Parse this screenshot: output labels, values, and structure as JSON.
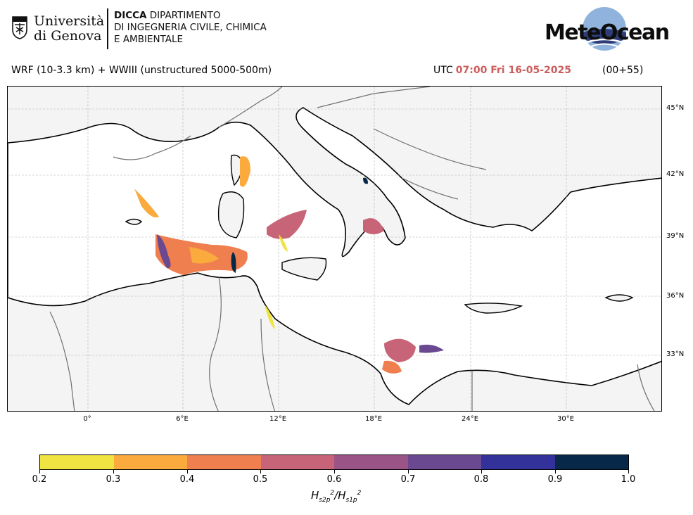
{
  "header": {
    "university_line1": "Università",
    "university_line2": "di Genova",
    "dept_bold": "DICCA",
    "dept_line1": " DIPARTIMENTO",
    "dept_line2": "DI INGEGNERIA CIVILE, CHIMICA",
    "dept_line3": "E AMBIENTALE",
    "brand": "MeteOcean"
  },
  "run": {
    "model": "WRF (10-3.3 km) + WWIII (unstructured 5000-500m)",
    "utc_label": "UTC",
    "time": "07:00 Fri 16-05-2025",
    "lead": "(00+55)"
  },
  "map": {
    "region": "Mediterranean Sea",
    "lat_ticks": [
      "45°N",
      "42°N",
      "39°N",
      "36°N",
      "33°N"
    ],
    "lon_ticks": [
      "0°",
      "6°E",
      "12°E",
      "18°E",
      "24°E",
      "30°E"
    ],
    "land_color": "#f4f4f4",
    "sea_color": "#ffffff",
    "coast_color": "#000000",
    "border_color": "#707070"
  },
  "colorbar": {
    "ticks": [
      "0.2",
      "0.3",
      "0.4",
      "0.5",
      "0.6",
      "0.7",
      "0.8",
      "0.9",
      "1.0"
    ],
    "colors": [
      "#f0e442",
      "#fbaa3e",
      "#f07f4f",
      "#c86478",
      "#9a5586",
      "#6b4990",
      "#32329a",
      "#08284a"
    ],
    "label": "Hs2p²/Hs1p²"
  }
}
